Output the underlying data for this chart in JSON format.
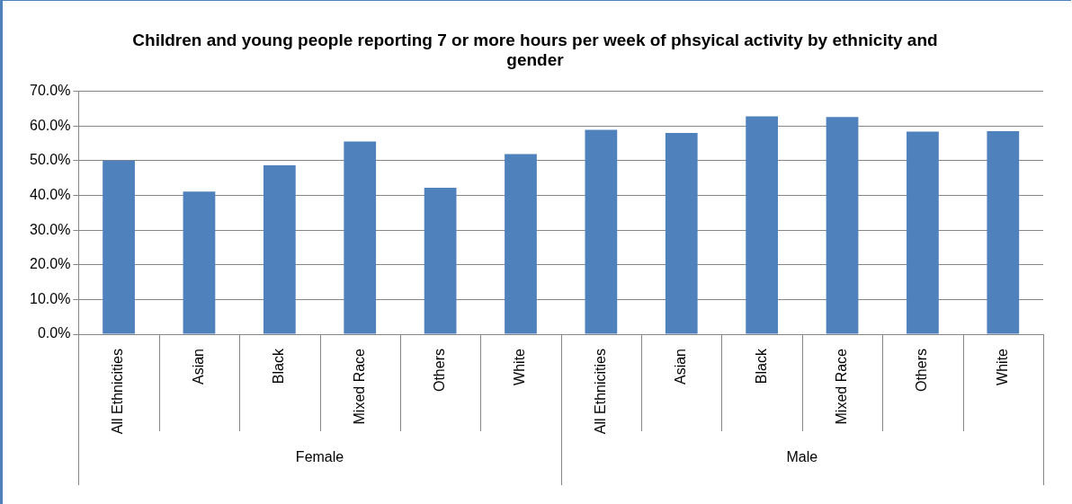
{
  "chart_data": {
    "type": "bar",
    "title": "Children and young people reporting 7 or more hours per week of phsyical activity by ethnicity and gender",
    "categories": [
      "All Ethnicities",
      "Asian",
      "Black",
      "Mixed Race",
      "Others",
      "White",
      "All Ethnicities",
      "Asian",
      "Black",
      "Mixed Race",
      "Others",
      "White"
    ],
    "values": [
      50.0,
      41.1,
      48.7,
      55.5,
      42.2,
      51.9,
      58.9,
      58.0,
      62.8,
      62.6,
      58.4,
      58.5
    ],
    "color": "#4f81bd",
    "ylim": [
      0,
      70
    ],
    "yticks": [
      {
        "value": 0,
        "label": "0.0%"
      },
      {
        "value": 10,
        "label": "10.0%"
      },
      {
        "value": 20,
        "label": "20.0%"
      },
      {
        "value": 30,
        "label": "30.0%"
      },
      {
        "value": 40,
        "label": "40.0%"
      },
      {
        "value": 50,
        "label": "50.0%"
      },
      {
        "value": 60,
        "label": "60.0%"
      },
      {
        "value": 70,
        "label": "70.0%"
      }
    ],
    "grid": "y",
    "annotations": [
      "Female",
      "Male"
    ]
  }
}
